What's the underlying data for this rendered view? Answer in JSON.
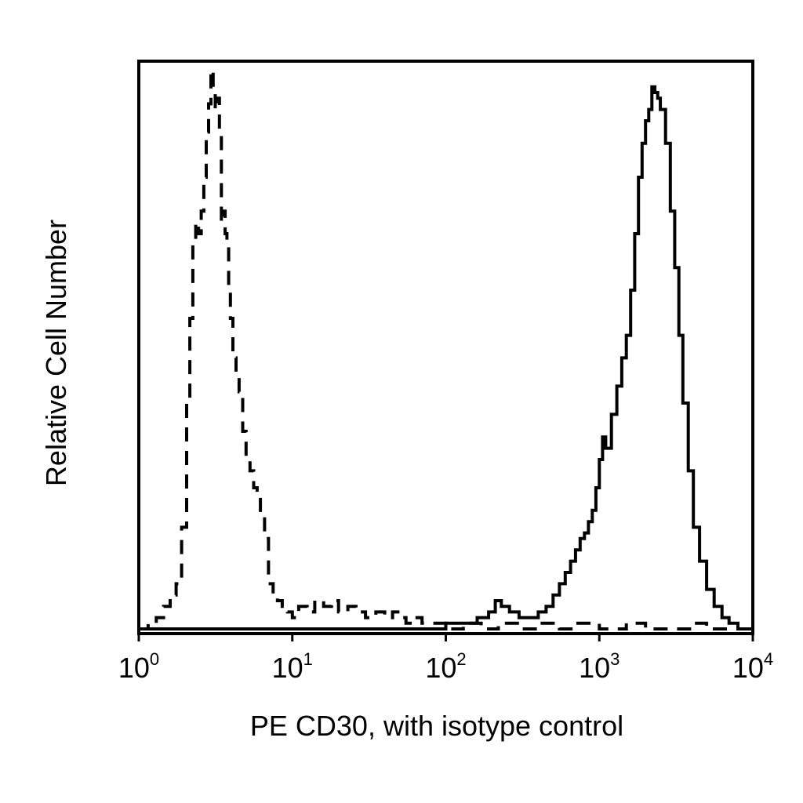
{
  "chart_data": {
    "type": "line",
    "xlabel": "PE CD30, with isotype control",
    "ylabel": "Relative Cell Number",
    "x_scale": "log",
    "xlim": [
      1,
      10000
    ],
    "ylim": [
      0,
      100
    ],
    "grid": false,
    "x_ticks": [
      {
        "base": "10",
        "exp": "0"
      },
      {
        "base": "10",
        "exp": "1"
      },
      {
        "base": "10",
        "exp": "2"
      },
      {
        "base": "10",
        "exp": "3"
      },
      {
        "base": "10",
        "exp": "4"
      }
    ],
    "series": [
      {
        "line_style": "dashed",
        "x": [
          1.0,
          1.15,
          1.3,
          1.45,
          1.6,
          1.75,
          1.9,
          2.05,
          2.15,
          2.25,
          2.35,
          2.45,
          2.55,
          2.65,
          2.75,
          2.85,
          2.95,
          3.05,
          3.15,
          3.25,
          3.35,
          3.45,
          3.55,
          3.65,
          3.75,
          3.85,
          3.95,
          4.1,
          4.3,
          4.5,
          4.75,
          5.0,
          5.3,
          5.6,
          5.9,
          6.2,
          6.6,
          7.0,
          7.5,
          8.0,
          8.6,
          9.3,
          10.0,
          11.0,
          12.5,
          14.0,
          16.0,
          18.0,
          20.0,
          23.0,
          26.0,
          30.0,
          35.0,
          40.0,
          45.0,
          50.0,
          55.0,
          60.0,
          70.0,
          80.0,
          100.0,
          130.0,
          170.0,
          220.0,
          300.0,
          400.0,
          550.0,
          700.0,
          1000.0,
          1500.0,
          2000.0,
          2500.0,
          3000.0,
          4000.0,
          5000.0,
          7000.0,
          10000.0
        ],
        "y": [
          0,
          1,
          2,
          4,
          6,
          8,
          18,
          40,
          55,
          68,
          72,
          70,
          74,
          80,
          88,
          93,
          99,
          96,
          92,
          94,
          88,
          72,
          74,
          70,
          68,
          60,
          55,
          48,
          45,
          42,
          35,
          30,
          28,
          25,
          24,
          20,
          16,
          8,
          6,
          5,
          4,
          3,
          2,
          4,
          3,
          5,
          4,
          5,
          3,
          4,
          3,
          2,
          3,
          2,
          3,
          2,
          1,
          2,
          1,
          1,
          0,
          1,
          0,
          1,
          0,
          1,
          0,
          1,
          0,
          1,
          0,
          0,
          0,
          1,
          0,
          0,
          0
        ]
      },
      {
        "line_style": "solid",
        "x": [
          1.0,
          2.0,
          5.0,
          10.0,
          20.0,
          40.0,
          60.0,
          80.0,
          100.0,
          130.0,
          160.0,
          190.0,
          210.0,
          230.0,
          260.0,
          300.0,
          350.0,
          400.0,
          450.0,
          500.0,
          550.0,
          600.0,
          650.0,
          700.0,
          750.0,
          800.0,
          850.0,
          900.0,
          950.0,
          1000.0,
          1050.0,
          1100.0,
          1200.0,
          1300.0,
          1400.0,
          1500.0,
          1600.0,
          1700.0,
          1800.0,
          1900.0,
          2000.0,
          2100.0,
          2200.0,
          2300.0,
          2400.0,
          2500.0,
          2700.0,
          2900.0,
          3100.0,
          3300.0,
          3500.0,
          3800.0,
          4100.0,
          4500.0,
          5000.0,
          5600.0,
          6300.0,
          7000.0,
          8000.0,
          10000.0
        ],
        "y": [
          0,
          0,
          0,
          0,
          0,
          0,
          0,
          0,
          1,
          1,
          2,
          3,
          5,
          4,
          3,
          2,
          2,
          3,
          4,
          6,
          8,
          10,
          12,
          14,
          16,
          17,
          19,
          21,
          25,
          30,
          34,
          32,
          38,
          43,
          48,
          52,
          60,
          70,
          80,
          86,
          90,
          92,
          96,
          95,
          94,
          92,
          86,
          74,
          64,
          52,
          40,
          28,
          18,
          12,
          7,
          4,
          2,
          1,
          0,
          0
        ]
      }
    ]
  }
}
